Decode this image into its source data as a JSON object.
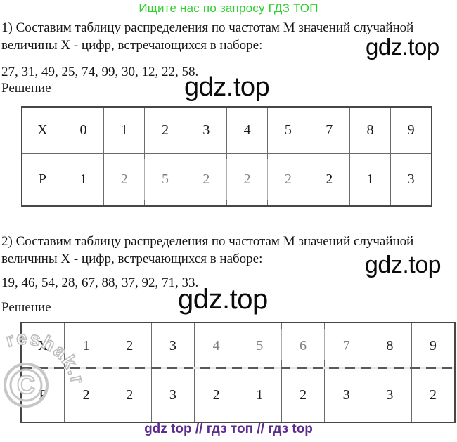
{
  "page": {
    "promo": "Ищите нас по запросу ГДЗ ТОП",
    "watermark": "gdz.top",
    "footer": "gdz top // гдз топ // гдз top",
    "stamp": {
      "arc_text": "reshak.ru",
      "symbol": "C"
    },
    "colors": {
      "promo_green": "#2fd02f",
      "footer_purple": "#5e2b8f",
      "watermark_black": "#0a0a0a",
      "table_border": "#6b6b6b"
    }
  },
  "sections": [
    {
      "task_line1": "1) Составим таблицу распределения по частотам М значений случайной",
      "task_line2": "величины Х - цифр, встречающихся в наборе:",
      "numbers": "27, 31, 49, 25, 74, 99, 30, 12, 22, 58.",
      "solution_label": "Решение",
      "table": {
        "rows": [
          [
            "X",
            "0",
            "1",
            "2",
            "3",
            "4",
            "5",
            "7",
            "8",
            "9"
          ],
          [
            "P",
            "1",
            "2",
            "5",
            "2",
            "2",
            "2",
            "2",
            "1",
            "3"
          ]
        ]
      }
    },
    {
      "task_line1": "2) Составим таблицу распределения по частотам М значений случайной",
      "task_line2": "величины Х - цифр, встречающихся в наборе:",
      "numbers": "19, 46, 54, 28, 67, 88, 37, 92, 71, 33.",
      "solution_label": "Решение",
      "table": {
        "rows": [
          [
            "X",
            "1",
            "2",
            "3",
            "4",
            "5",
            "6",
            "7",
            "8",
            "9"
          ],
          [
            "P",
            "2",
            "2",
            "3",
            "2",
            "1",
            "2",
            "3",
            "3",
            "2"
          ]
        ]
      }
    }
  ]
}
